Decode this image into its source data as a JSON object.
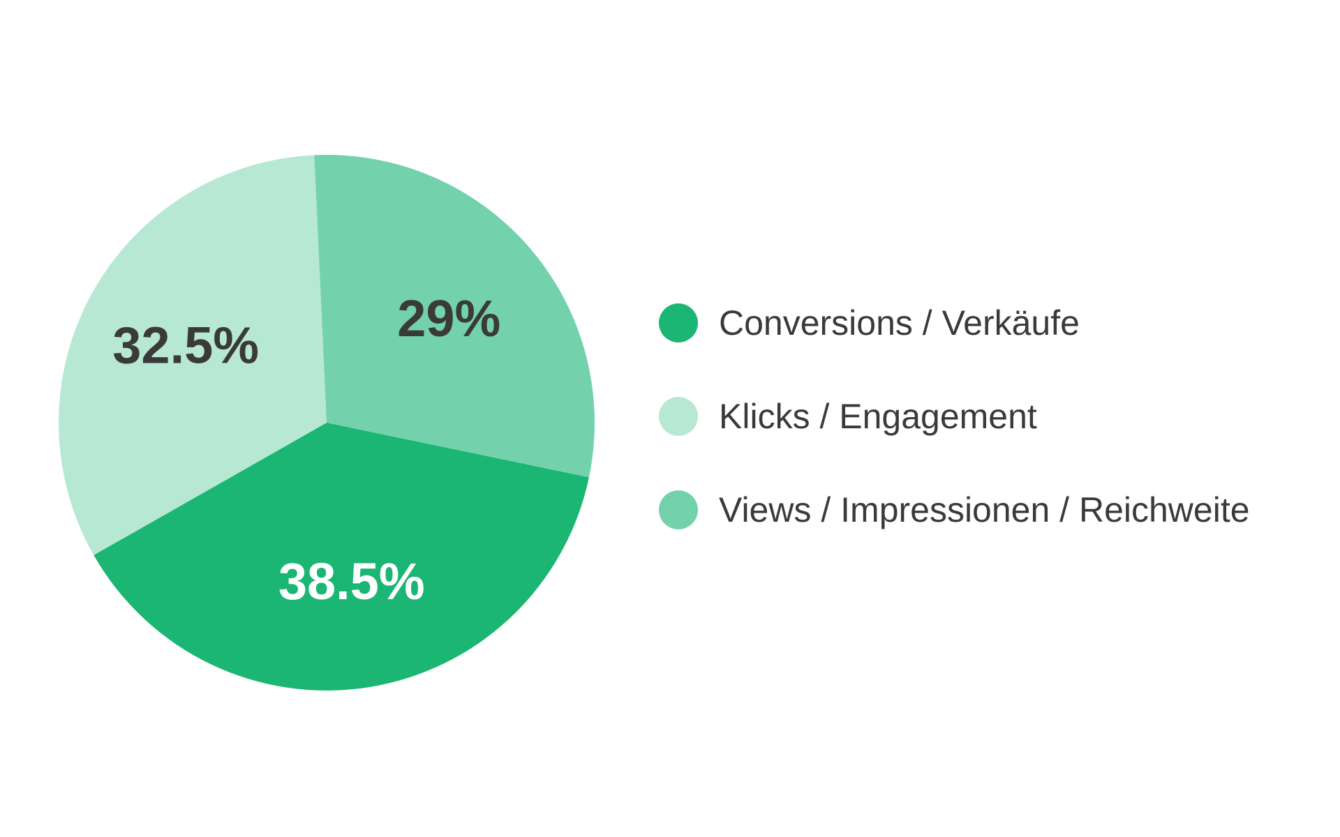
{
  "chart_data": {
    "type": "pie",
    "title": "",
    "slices": [
      {
        "name": "Conversions / Verkäufe",
        "value": 38.5,
        "label": "38.5%",
        "color": "#1bb673",
        "label_color": "#ffffff"
      },
      {
        "name": "Klicks / Engagement",
        "value": 32.5,
        "label": "32.5%",
        "color": "#b7e8d4",
        "label_color": "#3a3a3a"
      },
      {
        "name": "Views / Impressionen / Reichweite",
        "value": 29,
        "label": "29%",
        "color": "#73d2ac",
        "label_color": "#3a3a3a"
      }
    ],
    "legend_position": "right"
  }
}
